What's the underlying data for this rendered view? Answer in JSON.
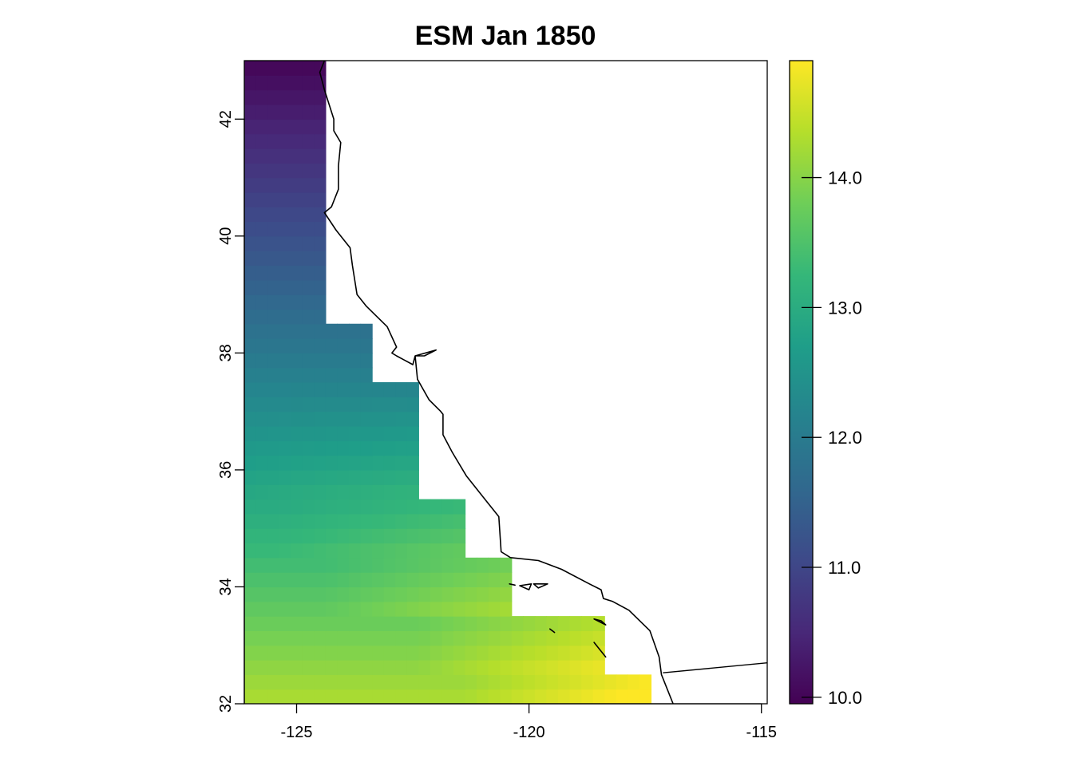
{
  "title": "ESM Jan 1850",
  "map": {
    "type": "raster",
    "x_range": [
      -126.125,
      -114.875
    ],
    "y_range": [
      32.0,
      43.0
    ],
    "x_ticks": [
      -125,
      -120,
      -115
    ],
    "x_tick_labels": [
      "-125",
      "-120",
      "-115"
    ],
    "y_ticks": [
      32,
      34,
      36,
      38,
      40,
      42
    ],
    "y_tick_labels": [
      "32",
      "34",
      "36",
      "38",
      "40",
      "42"
    ],
    "cell_size_deg": 0.25,
    "ocean_extent_bands": [
      {
        "lat_min": 32.0,
        "lat_max": 32.5,
        "lon_max": -117.375
      },
      {
        "lat_min": 32.5,
        "lat_max": 33.5,
        "lon_max": -118.375
      },
      {
        "lat_min": 33.5,
        "lat_max": 34.5,
        "lon_max": -120.375
      },
      {
        "lat_min": 34.5,
        "lat_max": 35.5,
        "lon_max": -121.375
      },
      {
        "lat_min": 35.5,
        "lat_max": 37.5,
        "lon_max": -122.375
      },
      {
        "lat_min": 37.5,
        "lat_max": 38.5,
        "lon_max": -123.375
      },
      {
        "lat_min": 38.5,
        "lat_max": 43.0,
        "lon_max": -124.375
      }
    ],
    "value_model": "approx. 14.3 at 32N decreasing to 10.0 at 43N, +0.8 warmer toward coast in south",
    "colormap": "viridis",
    "colormap_stops": [
      "#440154",
      "#482878",
      "#3e4989",
      "#31688e",
      "#26828e",
      "#1f9e89",
      "#35b779",
      "#6ece58",
      "#b5de2b",
      "#fde725"
    ],
    "coastline_lonlat": [
      [
        -124.4,
        43.0
      ],
      [
        -124.5,
        42.8
      ],
      [
        -124.4,
        42.5
      ],
      [
        -124.2,
        42.0
      ],
      [
        -124.2,
        41.8
      ],
      [
        -124.05,
        41.6
      ],
      [
        -124.1,
        41.2
      ],
      [
        -124.1,
        40.8
      ],
      [
        -124.25,
        40.5
      ],
      [
        -124.4,
        40.4
      ],
      [
        -124.15,
        40.1
      ],
      [
        -123.85,
        39.8
      ],
      [
        -123.8,
        39.5
      ],
      [
        -123.7,
        39.0
      ],
      [
        -123.5,
        38.8
      ],
      [
        -123.05,
        38.45
      ],
      [
        -122.85,
        38.1
      ],
      [
        -122.95,
        38.0
      ],
      [
        -122.85,
        37.95
      ],
      [
        -122.5,
        37.8
      ],
      [
        -122.45,
        37.95
      ],
      [
        -122.0,
        38.05
      ],
      [
        -122.25,
        37.95
      ],
      [
        -122.45,
        37.95
      ],
      [
        -122.4,
        37.55
      ],
      [
        -122.15,
        37.2
      ],
      [
        -121.9,
        37.0
      ],
      [
        -121.85,
        36.95
      ],
      [
        -121.85,
        36.6
      ],
      [
        -121.65,
        36.3
      ],
      [
        -121.35,
        35.9
      ],
      [
        -120.9,
        35.45
      ],
      [
        -120.65,
        35.2
      ],
      [
        -120.6,
        34.6
      ],
      [
        -120.4,
        34.5
      ],
      [
        -119.8,
        34.45
      ],
      [
        -119.3,
        34.3
      ],
      [
        -118.7,
        34.05
      ],
      [
        -118.45,
        33.95
      ],
      [
        -118.4,
        33.8
      ],
      [
        -118.2,
        33.75
      ],
      [
        -117.85,
        33.6
      ],
      [
        -117.4,
        33.25
      ],
      [
        -117.2,
        32.8
      ],
      [
        -117.15,
        32.5
      ],
      [
        -116.9,
        32.0
      ]
    ],
    "border_lonlat": [
      [
        -117.12,
        32.53
      ],
      [
        -114.875,
        32.7
      ]
    ],
    "islands_lonlat": [
      [
        [
          -120.42,
          34.05
        ],
        [
          -120.3,
          34.03
        ],
        [
          -120.42,
          34.05
        ]
      ],
      [
        [
          -120.2,
          34.02
        ],
        [
          -119.95,
          34.05
        ],
        [
          -120.0,
          33.95
        ],
        [
          -120.2,
          34.02
        ]
      ],
      [
        [
          -119.9,
          34.05
        ],
        [
          -119.6,
          34.05
        ],
        [
          -119.8,
          33.98
        ],
        [
          -119.9,
          34.05
        ]
      ],
      [
        [
          -119.55,
          33.28
        ],
        [
          -119.45,
          33.22
        ],
        [
          -119.55,
          33.28
        ]
      ],
      [
        [
          -118.6,
          33.45
        ],
        [
          -118.35,
          33.35
        ],
        [
          -118.45,
          33.42
        ],
        [
          -118.6,
          33.45
        ]
      ],
      [
        [
          -118.6,
          33.05
        ],
        [
          -118.35,
          32.8
        ],
        [
          -118.4,
          32.85
        ],
        [
          -118.6,
          33.05
        ]
      ]
    ]
  },
  "legend": {
    "min": 9.95,
    "max": 14.9,
    "ticks": [
      10.0,
      11.0,
      12.0,
      13.0,
      14.0
    ],
    "tick_labels": [
      "10.0",
      "11.0",
      "12.0",
      "13.0",
      "14.0"
    ]
  }
}
